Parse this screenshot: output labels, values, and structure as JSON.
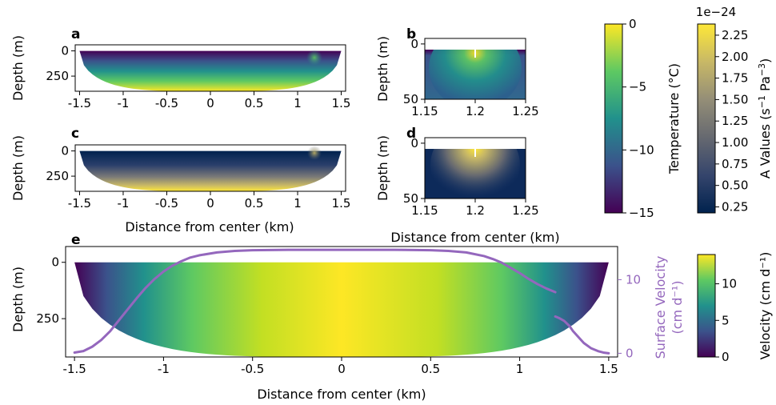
{
  "colors": {
    "viridis": [
      "#440154",
      "#3b528b",
      "#21918c",
      "#5ec962",
      "#fde725"
    ],
    "cividis": [
      "#00224e",
      "#35456c",
      "#666970",
      "#948e77",
      "#c8b866",
      "#fee838"
    ],
    "surface_velocity": "#9467bd"
  },
  "chart_data": [
    {
      "panel": "a",
      "type": "heatmap",
      "field": "temperature",
      "xlabel": "",
      "ylabel": "Depth (m)",
      "xlim": [
        -1.55,
        1.55
      ],
      "ylim": [
        400,
        -60
      ],
      "xticks": [
        "-1.5",
        "-1",
        "-0.5",
        "0",
        "0.5",
        "1",
        "1.5"
      ],
      "xtick_values": [
        -1.5,
        -1,
        -0.5,
        0,
        0.5,
        1,
        1.5
      ],
      "yticks": [
        "0",
        "250"
      ],
      "ytick_values": [
        0,
        250
      ],
      "max_depth": 400,
      "x_edge": 1.5
    },
    {
      "panel": "b",
      "type": "heatmap",
      "field": "temperature",
      "xlabel": "",
      "ylabel": "Depth (m)",
      "xlim": [
        1.15,
        1.25
      ],
      "ylim": [
        50,
        -5
      ],
      "xticks": [
        "1.15",
        "1.2",
        "1.25"
      ],
      "xtick_values": [
        1.15,
        1.2,
        1.25
      ],
      "yticks": [
        "0",
        "50"
      ],
      "ytick_values": [
        0,
        50
      ]
    },
    {
      "panel": "c",
      "type": "heatmap",
      "field": "A values",
      "xlabel": "Distance from center (km)",
      "ylabel": "Depth (m)",
      "xlim": [
        -1.55,
        1.55
      ],
      "ylim": [
        400,
        -60
      ],
      "xticks": [
        "-1.5",
        "-1",
        "-0.5",
        "0",
        "0.5",
        "1",
        "1.5"
      ],
      "xtick_values": [
        -1.5,
        -1,
        -0.5,
        0,
        0.5,
        1,
        1.5
      ],
      "yticks": [
        "0",
        "250"
      ],
      "ytick_values": [
        0,
        250
      ],
      "max_depth": 400,
      "x_edge": 1.5
    },
    {
      "panel": "d",
      "type": "heatmap",
      "field": "A values",
      "xlabel": "Distance from center (km)",
      "ylabel": "Depth (m)",
      "xlim": [
        1.15,
        1.25
      ],
      "ylim": [
        50,
        -5
      ],
      "xticks": [
        "1.15",
        "1.2",
        "1.25"
      ],
      "xtick_values": [
        1.15,
        1.2,
        1.25
      ],
      "yticks": [
        "0",
        "50"
      ],
      "ytick_values": [
        0,
        50
      ]
    },
    {
      "panel": "e",
      "type": "heatmap",
      "field": "velocity",
      "xlabel": "Distance from center (km)",
      "ylabel": "Depth (m)",
      "xlim": [
        -1.55,
        1.55
      ],
      "ylim": [
        420,
        -70
      ],
      "xticks": [
        "-1.5",
        "-1",
        "-0.5",
        "0",
        "0.5",
        "1",
        "1.5"
      ],
      "xtick_values": [
        -1.5,
        -1,
        -0.5,
        0,
        0.5,
        1,
        1.5
      ],
      "yticks": [
        "0",
        "250"
      ],
      "ytick_values": [
        0,
        250
      ],
      "max_depth": 420,
      "x_edge": 1.5,
      "secondary_axis": {
        "label_line1": "Surface Velocity",
        "label_line2": "(cm d⁻¹)",
        "ylim": [
          -0.5,
          14.5
        ],
        "yticks": [
          "0",
          "10"
        ],
        "ytick_values": [
          0,
          10
        ]
      },
      "series": [
        {
          "type": "line",
          "x": [
            -1.5,
            -1.45,
            -1.4,
            -1.35,
            -1.3,
            -1.25,
            -1.2,
            -1.15,
            -1.1,
            -1.05,
            -1.0,
            -0.95,
            -0.9,
            -0.85,
            -0.8,
            -0.7,
            -0.6,
            -0.5,
            -0.3,
            0,
            0.3,
            0.5,
            0.6,
            0.7,
            0.8,
            0.85,
            0.9,
            0.95,
            1.0,
            1.05,
            1.1,
            1.15,
            1.2
          ],
          "y": [
            0.1,
            0.3,
            0.9,
            1.8,
            3.0,
            4.5,
            6.0,
            7.5,
            8.9,
            10.1,
            11.1,
            11.9,
            12.5,
            13.0,
            13.3,
            13.7,
            13.9,
            14.0,
            14.05,
            14.05,
            14.05,
            14.0,
            13.9,
            13.7,
            13.2,
            12.8,
            12.3,
            11.6,
            10.9,
            10.1,
            9.4,
            8.8,
            8.3
          ]
        },
        {
          "type": "line",
          "x": [
            1.2,
            1.22,
            1.25,
            1.28,
            1.3,
            1.33,
            1.36,
            1.4,
            1.44,
            1.47,
            1.5
          ],
          "y": [
            5.0,
            4.8,
            4.4,
            3.7,
            3.0,
            2.2,
            1.4,
            0.7,
            0.3,
            0.1,
            0.0
          ]
        }
      ]
    }
  ],
  "colorbars": {
    "temperature": {
      "label": "Temperature (°C)",
      "range": [
        -15,
        0
      ],
      "ticks": [
        "0",
        "−5",
        "−10",
        "−15"
      ],
      "tick_values": [
        0,
        -5,
        -10,
        -15
      ]
    },
    "a_values": {
      "label_main": "A Values (s",
      "label_exp1": "−1",
      "label_mid": " Pa",
      "label_exp2": "−3",
      "label_end": ")",
      "exponent": "1e−24",
      "range": [
        0.18,
        2.38
      ],
      "ticks": [
        "2.25",
        "2.00",
        "1.75",
        "1.50",
        "1.25",
        "1.00",
        "0.75",
        "0.50",
        "0.25"
      ],
      "tick_values": [
        2.25,
        2.0,
        1.75,
        1.5,
        1.25,
        1.0,
        0.75,
        0.5,
        0.25
      ]
    },
    "velocity": {
      "label": "Velocity (cm d⁻¹)",
      "range": [
        0,
        14
      ],
      "ticks": [
        "10",
        "5",
        "0"
      ],
      "tick_values": [
        10,
        5,
        0
      ]
    }
  }
}
